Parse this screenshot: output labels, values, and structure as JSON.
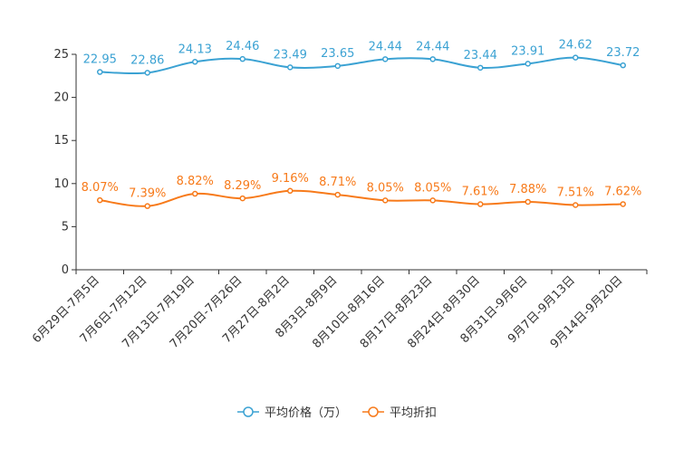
{
  "chart_data": {
    "type": "line",
    "title": "",
    "xlabel": "",
    "ylabel": "",
    "ylim": [
      0,
      25
    ],
    "yticks": [
      0,
      5,
      10,
      15,
      20,
      25
    ],
    "grid": false,
    "legend_position": "bottom-center",
    "categories": [
      "6月29日-7月5日",
      "7月6日-7月12日",
      "7月13日-7月19日",
      "7月20日-7月26日",
      "7月27日-8月2日",
      "8月3日-8月9日",
      "8月10日-8月16日",
      "8月17日-8月23日",
      "8月24日-8月30日",
      "8月31日-9月6日",
      "9月7日-9月13日",
      "9月14日-9月20日"
    ],
    "series": [
      {
        "name": "平均价格（万）",
        "color": "#3ba2d3",
        "values": [
          22.95,
          22.86,
          24.13,
          24.46,
          23.49,
          23.65,
          24.44,
          24.44,
          23.44,
          23.91,
          24.62,
          23.72
        ],
        "labels": [
          "22.95",
          "22.86",
          "24.13",
          "24.46",
          "23.49",
          "23.65",
          "24.44",
          "24.44",
          "23.44",
          "23.91",
          "24.62",
          "23.72"
        ]
      },
      {
        "name": "平均折扣",
        "color": "#f77a1a",
        "values": [
          8.07,
          7.39,
          8.82,
          8.29,
          9.16,
          8.71,
          8.05,
          8.05,
          7.61,
          7.88,
          7.51,
          7.62
        ],
        "labels": [
          "8.07%",
          "7.39%",
          "8.82%",
          "8.29%",
          "9.16%",
          "8.71%",
          "8.05%",
          "8.05%",
          "7.61%",
          "7.88%",
          "7.51%",
          "7.62%"
        ]
      }
    ]
  },
  "legend": {
    "items": [
      {
        "label": "平均价格（万）",
        "color": "#3ba2d3"
      },
      {
        "label": "平均折扣",
        "color": "#f77a1a"
      }
    ]
  }
}
